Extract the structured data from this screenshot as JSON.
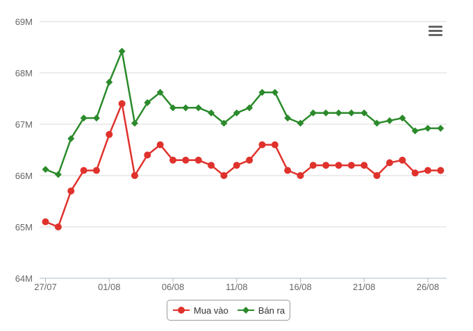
{
  "menu_icon": "hamburger-menu-icon",
  "chart_data": {
    "type": "line",
    "x": [
      "27/07",
      "28/07",
      "29/07",
      "30/07",
      "31/07",
      "01/08",
      "02/08",
      "03/08",
      "04/08",
      "05/08",
      "06/08",
      "07/08",
      "08/08",
      "09/08",
      "10/08",
      "11/08",
      "12/08",
      "13/08",
      "14/08",
      "15/08",
      "16/08",
      "17/08",
      "18/08",
      "19/08",
      "20/08",
      "21/08",
      "22/08",
      "23/08",
      "24/08",
      "25/08",
      "26/08",
      "27/08"
    ],
    "x_tick_labels": [
      "27/07",
      "01/08",
      "06/08",
      "11/08",
      "16/08",
      "21/08",
      "26/08"
    ],
    "y_tick_labels": [
      "64M",
      "65M",
      "66M",
      "67M",
      "68M",
      "69M"
    ],
    "ylim": [
      64,
      69
    ],
    "y_unit": "M",
    "grid": true,
    "legend_position": "bottom-center",
    "series": [
      {
        "name": "Mua vào",
        "color": "#e0322c",
        "marker": "circle",
        "values": [
          65.1,
          65.0,
          65.7,
          66.1,
          66.1,
          66.8,
          67.4,
          66.0,
          66.4,
          66.6,
          66.3,
          66.3,
          66.3,
          66.2,
          66.0,
          66.2,
          66.3,
          66.6,
          66.6,
          66.1,
          66.0,
          66.2,
          66.2,
          66.2,
          66.2,
          66.2,
          66.0,
          66.25,
          66.3,
          66.05,
          66.1,
          66.1
        ]
      },
      {
        "name": "Bán ra",
        "color": "#2b8a2b",
        "marker": "diamond",
        "values": [
          66.12,
          66.02,
          66.72,
          67.12,
          67.12,
          67.82,
          68.42,
          67.02,
          67.42,
          67.62,
          67.32,
          67.32,
          67.32,
          67.22,
          67.02,
          67.22,
          67.32,
          67.62,
          67.62,
          67.12,
          67.02,
          67.22,
          67.22,
          67.22,
          67.22,
          67.22,
          67.02,
          67.07,
          67.12,
          66.87,
          66.92,
          66.92
        ]
      }
    ]
  }
}
